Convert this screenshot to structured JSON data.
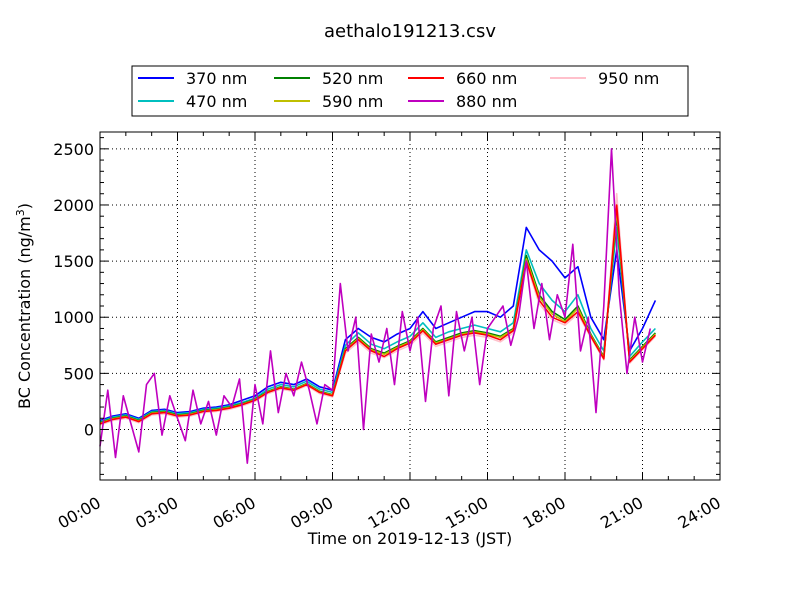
{
  "chart_data": {
    "type": "line",
    "title": "aethalo191213.csv",
    "xlabel": "Time on 2019-12-13 (JST)",
    "ylabel_main": "BC Concentration (ng/m",
    "ylabel_sup": "3",
    "ylabel_end": ")",
    "xlim": [
      "00:00",
      "24:00"
    ],
    "ylim": [
      -450,
      2650
    ],
    "x_ticks": [
      "00:00",
      "03:00",
      "06:00",
      "09:00",
      "12:00",
      "15:00",
      "18:00",
      "21:00",
      "24:00"
    ],
    "y_ticks": [
      0,
      500,
      1000,
      1500,
      2000,
      2500
    ],
    "grid": true,
    "legend_position": "top, above plot",
    "series": [
      {
        "name": "370 nm",
        "color": "#0000ff",
        "x": [
          0.0,
          0.5,
          1.0,
          1.5,
          2.0,
          2.5,
          3.0,
          3.5,
          4.0,
          4.5,
          5.0,
          5.5,
          6.0,
          6.5,
          7.0,
          7.5,
          8.0,
          8.5,
          9.0,
          9.5,
          10.0,
          10.5,
          11.0,
          11.5,
          12.0,
          12.5,
          13.0,
          13.5,
          14.0,
          14.5,
          15.0,
          15.5,
          16.0,
          16.5,
          17.0,
          17.5,
          18.0,
          18.5,
          19.0,
          19.5,
          20.0,
          20.5,
          21.0,
          21.5
        ],
        "y": [
          80,
          120,
          140,
          100,
          170,
          180,
          150,
          160,
          190,
          200,
          220,
          260,
          300,
          380,
          420,
          400,
          450,
          380,
          350,
          800,
          900,
          820,
          780,
          850,
          900,
          1050,
          900,
          950,
          1000,
          1050,
          1050,
          1000,
          1100,
          1800,
          1600,
          1500,
          1350,
          1450,
          1000,
          800,
          1600,
          700,
          900,
          1150
        ]
      },
      {
        "name": "470 nm",
        "color": "#00bfbf",
        "x": [
          0.0,
          0.5,
          1.0,
          1.5,
          2.0,
          2.5,
          3.0,
          3.5,
          4.0,
          4.5,
          5.0,
          5.5,
          6.0,
          6.5,
          7.0,
          7.5,
          8.0,
          8.5,
          9.0,
          9.5,
          10.0,
          10.5,
          11.0,
          11.5,
          12.0,
          12.5,
          13.0,
          13.5,
          14.0,
          14.5,
          15.0,
          15.5,
          16.0,
          16.5,
          17.0,
          17.5,
          18.0,
          18.5,
          19.0,
          19.5,
          20.0,
          20.5,
          21.0,
          21.5
        ],
        "y": [
          70,
          110,
          130,
          90,
          160,
          170,
          140,
          150,
          180,
          190,
          210,
          240,
          280,
          360,
          400,
          380,
          430,
          360,
          330,
          750,
          860,
          760,
          720,
          780,
          830,
          950,
          820,
          870,
          900,
          930,
          900,
          870,
          950,
          1600,
          1300,
          1150,
          1050,
          1200,
          900,
          700,
          1800,
          650,
          780,
          900
        ]
      },
      {
        "name": "520 nm",
        "color": "#008000",
        "x": [
          0.0,
          0.5,
          1.0,
          1.5,
          2.0,
          2.5,
          3.0,
          3.5,
          4.0,
          4.5,
          5.0,
          5.5,
          6.0,
          6.5,
          7.0,
          7.5,
          8.0,
          8.5,
          9.0,
          9.5,
          10.0,
          10.5,
          11.0,
          11.5,
          12.0,
          12.5,
          13.0,
          13.5,
          14.0,
          14.5,
          15.0,
          15.5,
          16.0,
          16.5,
          17.0,
          17.5,
          18.0,
          18.5,
          19.0,
          19.5,
          20.0,
          20.5,
          21.0,
          21.5
        ],
        "y": [
          60,
          100,
          120,
          80,
          150,
          160,
          130,
          140,
          170,
          180,
          200,
          230,
          270,
          340,
          380,
          360,
          410,
          340,
          310,
          720,
          820,
          720,
          680,
          740,
          790,
          900,
          780,
          820,
          860,
          880,
          860,
          830,
          900,
          1550,
          1200,
          1050,
          980,
          1100,
          850,
          650,
          1900,
          620,
          740,
          860
        ]
      },
      {
        "name": "590 nm",
        "color": "#bfbf00",
        "x": [
          0.0,
          0.5,
          1.0,
          1.5,
          2.0,
          2.5,
          3.0,
          3.5,
          4.0,
          4.5,
          5.0,
          5.5,
          6.0,
          6.5,
          7.0,
          7.5,
          8.0,
          8.5,
          9.0,
          9.5,
          10.0,
          10.5,
          11.0,
          11.5,
          12.0,
          12.5,
          13.0,
          13.5,
          14.0,
          14.5,
          15.0,
          15.5,
          16.0,
          16.5,
          17.0,
          17.5,
          18.0,
          18.5,
          19.0,
          19.5,
          20.0,
          20.5,
          21.0,
          21.5
        ],
        "y": [
          55,
          95,
          115,
          75,
          145,
          155,
          125,
          135,
          165,
          175,
          195,
          225,
          265,
          335,
          375,
          355,
          405,
          335,
          305,
          710,
          810,
          710,
          670,
          730,
          780,
          890,
          770,
          810,
          850,
          870,
          850,
          820,
          890,
          1520,
          1180,
          1030,
          960,
          1080,
          840,
          640,
          1950,
          610,
          730,
          850
        ]
      },
      {
        "name": "660 nm",
        "color": "#ff0000",
        "x": [
          0.0,
          0.5,
          1.0,
          1.5,
          2.0,
          2.5,
          3.0,
          3.5,
          4.0,
          4.5,
          5.0,
          5.5,
          6.0,
          6.5,
          7.0,
          7.5,
          8.0,
          8.5,
          9.0,
          9.5,
          10.0,
          10.5,
          11.0,
          11.5,
          12.0,
          12.5,
          13.0,
          13.5,
          14.0,
          14.5,
          15.0,
          15.5,
          16.0,
          16.5,
          17.0,
          17.5,
          18.0,
          18.5,
          19.0,
          19.5,
          20.0,
          20.5,
          21.0,
          21.5
        ],
        "y": [
          50,
          90,
          110,
          70,
          140,
          150,
          120,
          130,
          160,
          170,
          190,
          220,
          260,
          330,
          370,
          350,
          400,
          330,
          300,
          700,
          800,
          700,
          650,
          720,
          770,
          880,
          760,
          800,
          840,
          860,
          840,
          800,
          880,
          1500,
          1150,
          1000,
          950,
          1050,
          830,
          630,
          2000,
          600,
          720,
          840
        ]
      },
      {
        "name": "880 nm",
        "color": "#bf00bf",
        "x": [
          0.0,
          0.3,
          0.6,
          0.9,
          1.2,
          1.5,
          1.8,
          2.1,
          2.4,
          2.7,
          3.0,
          3.3,
          3.6,
          3.9,
          4.2,
          4.5,
          4.8,
          5.1,
          5.4,
          5.7,
          6.0,
          6.3,
          6.6,
          6.9,
          7.2,
          7.5,
          7.8,
          8.1,
          8.4,
          8.7,
          9.0,
          9.3,
          9.6,
          9.9,
          10.2,
          10.5,
          10.8,
          11.1,
          11.4,
          11.7,
          12.0,
          12.3,
          12.6,
          12.9,
          13.2,
          13.5,
          13.8,
          14.1,
          14.4,
          14.7,
          15.0,
          15.3,
          15.6,
          15.9,
          16.2,
          16.5,
          16.8,
          17.1,
          17.4,
          17.7,
          18.0,
          18.3,
          18.6,
          18.9,
          19.2,
          19.5,
          19.8,
          20.1,
          20.4,
          20.7,
          21.0,
          21.3
        ],
        "y": [
          -150,
          350,
          -250,
          300,
          50,
          -200,
          400,
          500,
          -50,
          300,
          100,
          -100,
          350,
          50,
          250,
          -50,
          300,
          200,
          450,
          -300,
          400,
          50,
          700,
          150,
          500,
          300,
          600,
          350,
          50,
          400,
          350,
          1300,
          700,
          1000,
          0,
          850,
          600,
          900,
          400,
          1050,
          700,
          1000,
          250,
          900,
          1100,
          300,
          1050,
          700,
          1000,
          400,
          900,
          1000,
          1100,
          750,
          1000,
          1500,
          900,
          1300,
          800,
          1200,
          1000,
          1650,
          700,
          1000,
          150,
          1100,
          2500,
          1200,
          500,
          1000,
          600,
          900
        ]
      },
      {
        "name": "950 nm",
        "color": "#ffc0cb",
        "x": [
          0.0,
          0.5,
          1.0,
          1.5,
          2.0,
          2.5,
          3.0,
          3.5,
          4.0,
          4.5,
          5.0,
          5.5,
          6.0,
          6.5,
          7.0,
          7.5,
          8.0,
          8.5,
          9.0,
          9.5,
          10.0,
          10.5,
          11.0,
          11.5,
          12.0,
          12.5,
          13.0,
          13.5,
          14.0,
          14.5,
          15.0,
          15.5,
          16.0,
          16.5,
          17.0,
          17.5,
          18.0,
          18.5,
          19.0,
          19.5,
          20.0,
          20.5,
          21.0,
          21.5
        ],
        "y": [
          40,
          80,
          100,
          60,
          130,
          140,
          110,
          120,
          150,
          160,
          180,
          210,
          250,
          320,
          360,
          340,
          390,
          320,
          290,
          680,
          780,
          680,
          640,
          700,
          750,
          860,
          740,
          780,
          820,
          840,
          820,
          780,
          860,
          1480,
          1120,
          980,
          930,
          1030,
          820,
          620,
          2100,
          590,
          710,
          830
        ]
      }
    ]
  }
}
